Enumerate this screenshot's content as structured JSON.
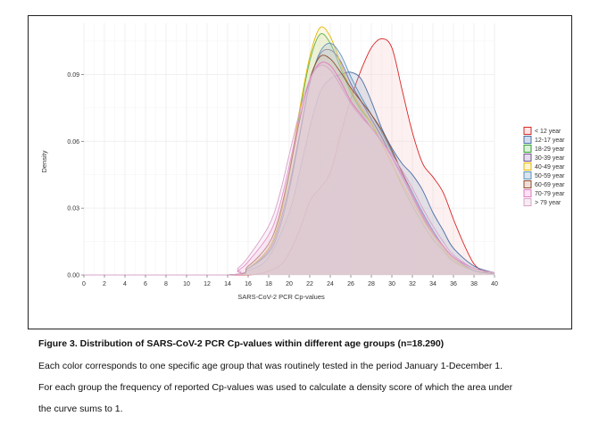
{
  "figure": {
    "caption_title": "Figure 3. Distribution of SARS-CoV-2 PCR Cp-values within different age groups (n=18.290)",
    "caption_lines": [
      "Each color corresponds to one specific age group that was routinely tested in the period January 1-December 1.",
      "For each group the frequency of reported Cp-values was used to calculate a density score of which the area under",
      "the curve sums to 1."
    ]
  },
  "chart_data": {
    "type": "area",
    "title": "",
    "xlabel": "SARS-CoV-2 PCR Cp-values",
    "ylabel": "Density",
    "xlim": [
      0,
      40
    ],
    "ylim": [
      0,
      0.113
    ],
    "xticks": [
      "0",
      "2",
      "4",
      "6",
      "8",
      "10",
      "12",
      "14",
      "16",
      "18",
      "20",
      "22",
      "24",
      "26",
      "28",
      "30",
      "32",
      "34",
      "36",
      "38",
      "40"
    ],
    "yticks": [
      {
        "value": 0.0,
        "label": "0.00"
      },
      {
        "value": 0.03,
        "label": "0.03"
      },
      {
        "value": 0.06,
        "label": "0.06"
      },
      {
        "value": 0.09,
        "label": "0.09"
      }
    ],
    "grid": true,
    "legend_position": "right",
    "series": [
      {
        "name": "< 12 year",
        "color": "#d62728",
        "fill": "#f8c8c8",
        "points": [
          [
            0,
            0
          ],
          [
            14,
            0
          ],
          [
            17,
            0.0005
          ],
          [
            19,
            0.004
          ],
          [
            20,
            0.01
          ],
          [
            21,
            0.02
          ],
          [
            22,
            0.033
          ],
          [
            23,
            0.039
          ],
          [
            24,
            0.046
          ],
          [
            25,
            0.063
          ],
          [
            26,
            0.079
          ],
          [
            27,
            0.092
          ],
          [
            28,
            0.102
          ],
          [
            29,
            0.106
          ],
          [
            30,
            0.102
          ],
          [
            31,
            0.083
          ],
          [
            32,
            0.064
          ],
          [
            33,
            0.05
          ],
          [
            34,
            0.044
          ],
          [
            35,
            0.037
          ],
          [
            36,
            0.025
          ],
          [
            37,
            0.014
          ],
          [
            38,
            0.005
          ],
          [
            39,
            0.0015
          ],
          [
            40,
            0.0005
          ]
        ]
      },
      {
        "name": "12-17 year",
        "color": "#4a6fa5",
        "fill": "#9fb3cf",
        "points": [
          [
            0,
            0
          ],
          [
            14,
            0
          ],
          [
            16,
            0.002
          ],
          [
            18,
            0.008
          ],
          [
            20,
            0.028
          ],
          [
            21,
            0.046
          ],
          [
            22,
            0.066
          ],
          [
            23,
            0.082
          ],
          [
            24,
            0.088
          ],
          [
            25,
            0.09
          ],
          [
            26,
            0.091
          ],
          [
            27,
            0.088
          ],
          [
            28,
            0.078
          ],
          [
            29,
            0.066
          ],
          [
            30,
            0.057
          ],
          [
            31,
            0.05
          ],
          [
            32,
            0.045
          ],
          [
            33,
            0.038
          ],
          [
            34,
            0.028
          ],
          [
            35,
            0.02
          ],
          [
            36,
            0.012
          ],
          [
            38,
            0.004
          ],
          [
            40,
            0.001
          ]
        ]
      },
      {
        "name": "18-29 year",
        "color": "#2ca02c",
        "fill": "#b8dcb0",
        "points": [
          [
            0,
            0
          ],
          [
            14,
            0
          ],
          [
            16,
            0.003
          ],
          [
            18,
            0.012
          ],
          [
            19,
            0.024
          ],
          [
            20,
            0.045
          ],
          [
            21,
            0.072
          ],
          [
            22,
            0.096
          ],
          [
            23,
            0.108
          ],
          [
            24,
            0.104
          ],
          [
            25,
            0.093
          ],
          [
            26,
            0.082
          ],
          [
            27,
            0.074
          ],
          [
            28,
            0.068
          ],
          [
            29,
            0.059
          ],
          [
            30,
            0.05
          ],
          [
            31,
            0.04
          ],
          [
            32,
            0.031
          ],
          [
            33,
            0.023
          ],
          [
            34,
            0.016
          ],
          [
            35,
            0.011
          ],
          [
            36,
            0.006
          ],
          [
            38,
            0.002
          ],
          [
            40,
            0.0005
          ]
        ]
      },
      {
        "name": "30-39 year",
        "color": "#6f4e8c",
        "fill": "#c3b4d4",
        "points": [
          [
            0,
            0
          ],
          [
            14,
            0
          ],
          [
            16,
            0.003
          ],
          [
            18,
            0.011
          ],
          [
            19,
            0.022
          ],
          [
            20,
            0.04
          ],
          [
            21,
            0.063
          ],
          [
            22,
            0.086
          ],
          [
            23,
            0.099
          ],
          [
            24,
            0.101
          ],
          [
            25,
            0.096
          ],
          [
            26,
            0.086
          ],
          [
            27,
            0.078
          ],
          [
            28,
            0.07
          ],
          [
            29,
            0.062
          ],
          [
            30,
            0.053
          ],
          [
            31,
            0.044
          ],
          [
            32,
            0.035
          ],
          [
            33,
            0.026
          ],
          [
            34,
            0.018
          ],
          [
            35,
            0.012
          ],
          [
            36,
            0.007
          ],
          [
            38,
            0.002
          ],
          [
            40,
            0.0005
          ]
        ]
      },
      {
        "name": "40-49 year",
        "color": "#e6b800",
        "fill": "#f6e7a0",
        "points": [
          [
            0,
            0
          ],
          [
            14,
            0
          ],
          [
            16,
            0.003
          ],
          [
            18,
            0.012
          ],
          [
            19,
            0.024
          ],
          [
            20,
            0.046
          ],
          [
            21,
            0.074
          ],
          [
            22,
            0.098
          ],
          [
            23,
            0.111
          ],
          [
            24,
            0.107
          ],
          [
            25,
            0.095
          ],
          [
            26,
            0.083
          ],
          [
            27,
            0.075
          ],
          [
            28,
            0.068
          ],
          [
            29,
            0.059
          ],
          [
            30,
            0.05
          ],
          [
            31,
            0.041
          ],
          [
            32,
            0.033
          ],
          [
            33,
            0.025
          ],
          [
            34,
            0.018
          ],
          [
            35,
            0.012
          ],
          [
            36,
            0.007
          ],
          [
            38,
            0.002
          ],
          [
            40,
            0.0005
          ]
        ]
      },
      {
        "name": "50-59 year",
        "color": "#5d8fb8",
        "fill": "#a9c3da",
        "points": [
          [
            0,
            0
          ],
          [
            14,
            0
          ],
          [
            16,
            0.003
          ],
          [
            18,
            0.01
          ],
          [
            19,
            0.02
          ],
          [
            20,
            0.038
          ],
          [
            21,
            0.062
          ],
          [
            22,
            0.086
          ],
          [
            23,
            0.1
          ],
          [
            24,
            0.104
          ],
          [
            25,
            0.099
          ],
          [
            26,
            0.089
          ],
          [
            27,
            0.08
          ],
          [
            28,
            0.072
          ],
          [
            29,
            0.064
          ],
          [
            30,
            0.055
          ],
          [
            31,
            0.046
          ],
          [
            32,
            0.037
          ],
          [
            33,
            0.028
          ],
          [
            34,
            0.02
          ],
          [
            35,
            0.013
          ],
          [
            36,
            0.008
          ],
          [
            38,
            0.002
          ],
          [
            40,
            0.0005
          ]
        ]
      },
      {
        "name": "60-69 year",
        "color": "#8c4a2f",
        "fill": "#d7b9a8",
        "points": [
          [
            0,
            0
          ],
          [
            14,
            0
          ],
          [
            16,
            0.004
          ],
          [
            18,
            0.014
          ],
          [
            19,
            0.026
          ],
          [
            20,
            0.046
          ],
          [
            21,
            0.069
          ],
          [
            22,
            0.088
          ],
          [
            23,
            0.098
          ],
          [
            24,
            0.097
          ],
          [
            25,
            0.091
          ],
          [
            26,
            0.084
          ],
          [
            27,
            0.078
          ],
          [
            28,
            0.072
          ],
          [
            29,
            0.065
          ],
          [
            30,
            0.056
          ],
          [
            31,
            0.046
          ],
          [
            32,
            0.036
          ],
          [
            33,
            0.027
          ],
          [
            34,
            0.019
          ],
          [
            35,
            0.013
          ],
          [
            36,
            0.008
          ],
          [
            38,
            0.003
          ],
          [
            40,
            0.001
          ]
        ]
      },
      {
        "name": "70-79 year",
        "color": "#e377c2",
        "fill": "#f3c3e3",
        "points": [
          [
            0,
            0
          ],
          [
            14,
            0
          ],
          [
            15,
            0.002
          ],
          [
            16,
            0.006
          ],
          [
            18,
            0.018
          ],
          [
            19,
            0.03
          ],
          [
            20,
            0.049
          ],
          [
            21,
            0.07
          ],
          [
            22,
            0.087
          ],
          [
            23,
            0.095
          ],
          [
            24,
            0.094
          ],
          [
            25,
            0.087
          ],
          [
            26,
            0.078
          ],
          [
            27,
            0.072
          ],
          [
            28,
            0.066
          ],
          [
            29,
            0.06
          ],
          [
            30,
            0.053
          ],
          [
            31,
            0.045
          ],
          [
            32,
            0.036
          ],
          [
            33,
            0.027
          ],
          [
            34,
            0.019
          ],
          [
            35,
            0.013
          ],
          [
            36,
            0.008
          ],
          [
            38,
            0.003
          ],
          [
            40,
            0.001
          ]
        ]
      },
      {
        "name": "> 79 year",
        "color": "#d6a4c8",
        "fill": "#eed4e6",
        "points": [
          [
            0,
            0
          ],
          [
            14,
            0
          ],
          [
            15,
            0.003
          ],
          [
            16,
            0.008
          ],
          [
            18,
            0.022
          ],
          [
            19,
            0.035
          ],
          [
            20,
            0.054
          ],
          [
            21,
            0.073
          ],
          [
            22,
            0.088
          ],
          [
            23,
            0.094
          ],
          [
            24,
            0.092
          ],
          [
            25,
            0.085
          ],
          [
            26,
            0.077
          ],
          [
            27,
            0.071
          ],
          [
            28,
            0.066
          ],
          [
            29,
            0.06
          ],
          [
            30,
            0.054
          ],
          [
            31,
            0.047
          ],
          [
            32,
            0.039
          ],
          [
            33,
            0.03
          ],
          [
            34,
            0.022
          ],
          [
            35,
            0.015
          ],
          [
            36,
            0.009
          ],
          [
            38,
            0.003
          ],
          [
            40,
            0.001
          ]
        ]
      }
    ]
  }
}
